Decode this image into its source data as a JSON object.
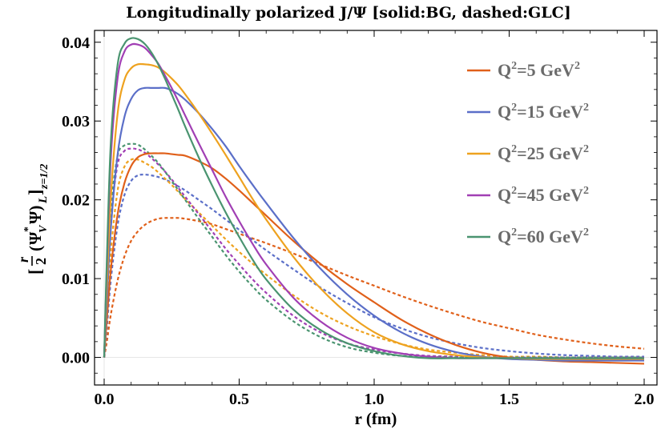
{
  "chart_data": {
    "type": "line",
    "title": "Longitudinally polarized J/Ψ [solid:BG, dashed:GLC]",
    "xlabel": "r (fm)",
    "ylabel": {
      "bracket_open": "[",
      "fraction_num": "r",
      "fraction_den": "2",
      "open_paren": "(",
      "psi_v": "Ψ",
      "star": "*",
      "sub_v": "V",
      "psi": "Ψ)",
      "sub_L": "L",
      "bracket_close": "]",
      "sub_z": "z=1/2"
    },
    "xlim": [
      0,
      2
    ],
    "ylim": [
      -0.0035,
      0.0415
    ],
    "xticks": [
      0.0,
      0.5,
      1.0,
      1.5,
      2.0
    ],
    "xtick_labels": [
      "0.0",
      "0.5",
      "1.0",
      "1.5",
      "2.0"
    ],
    "yticks": [
      0.0,
      0.01,
      0.02,
      0.03,
      0.04
    ],
    "ytick_labels": [
      "0.00",
      "0.01",
      "0.02",
      "0.03",
      "0.04"
    ],
    "grid": false,
    "legend_position": "top-right",
    "x": [
      0,
      0.01,
      0.025,
      0.05,
      0.075,
      0.1,
      0.125,
      0.15,
      0.175,
      0.2,
      0.225,
      0.25,
      0.275,
      0.3,
      0.35,
      0.4,
      0.45,
      0.5,
      0.55,
      0.6,
      0.7,
      0.8,
      0.9,
      1.0,
      1.1,
      1.2,
      1.3,
      1.4,
      1.5,
      1.6,
      1.7,
      1.8,
      1.9,
      2.0
    ],
    "series": [
      {
        "name": "Q²=5 GeV²",
        "legend": {
          "q": "Q",
          "q_sup": "2",
          "value": "=5 GeV",
          "unit_sup": "2"
        },
        "color": "#e0601a",
        "style": "solid",
        "values": [
          0,
          0.0048,
          0.0112,
          0.0182,
          0.0221,
          0.0243,
          0.0254,
          0.0258,
          0.0259,
          0.0259,
          0.0259,
          0.0258,
          0.0257,
          0.0256,
          0.0249,
          0.024,
          0.0227,
          0.0212,
          0.0196,
          0.018,
          0.0148,
          0.0119,
          0.0093,
          0.007,
          0.0048,
          0.003,
          0.0016,
          0.0006,
          0.0,
          -0.0003,
          -0.0005,
          -0.0006,
          -0.0007,
          -0.0008
        ]
      },
      {
        "name": "Q²=15 GeV²",
        "legend": {
          "q": "Q",
          "q_sup": "2",
          "value": "=15 GeV",
          "unit_sup": "2"
        },
        "color": "#5b6fc8",
        "style": "solid",
        "values": [
          0,
          0.0072,
          0.0165,
          0.0258,
          0.0305,
          0.0328,
          0.0339,
          0.0342,
          0.0342,
          0.0342,
          0.0342,
          0.0339,
          0.0334,
          0.0327,
          0.031,
          0.029,
          0.0268,
          0.0243,
          0.0219,
          0.0196,
          0.0152,
          0.0113,
          0.008,
          0.0053,
          0.0032,
          0.0017,
          0.0007,
          0.0001,
          -0.0002,
          -0.0003,
          -0.0004,
          -0.0004,
          -0.0004,
          -0.0004
        ]
      },
      {
        "name": "Q²=25 GeV²",
        "legend": {
          "q": "Q",
          "q_sup": "2",
          "value": "=25 GeV",
          "unit_sup": "2"
        },
        "color": "#eea21f",
        "style": "solid",
        "values": [
          0,
          0.009,
          0.0205,
          0.031,
          0.0352,
          0.0367,
          0.0372,
          0.0372,
          0.0371,
          0.0368,
          0.0362,
          0.0354,
          0.0345,
          0.0334,
          0.031,
          0.0284,
          0.0257,
          0.0229,
          0.0201,
          0.0175,
          0.0128,
          0.0088,
          0.0056,
          0.0032,
          0.0017,
          0.0008,
          0.0003,
          0.0,
          -0.0001,
          -0.0002,
          -0.0002,
          -0.0002,
          -0.0002,
          -0.0002
        ]
      },
      {
        "name": "Q²=45 GeV²",
        "legend": {
          "q": "Q",
          "q_sup": "2",
          "value": "=45 GeV",
          "unit_sup": "2"
        },
        "color": "#a13fb4",
        "style": "solid",
        "values": [
          0,
          0.0115,
          0.0255,
          0.0355,
          0.0388,
          0.0397,
          0.0397,
          0.0393,
          0.0384,
          0.0373,
          0.0358,
          0.0342,
          0.0325,
          0.0307,
          0.0272,
          0.0238,
          0.0204,
          0.0173,
          0.0144,
          0.0118,
          0.0076,
          0.0046,
          0.0025,
          0.0012,
          0.0005,
          0.0001,
          -0.0001,
          -0.0001,
          -0.0001,
          -0.0001,
          -0.0001,
          -0.0001,
          -0.0001,
          -0.0001
        ]
      },
      {
        "name": "Q²=60 GeV²",
        "legend": {
          "q": "Q",
          "q_sup": "2",
          "value": "=60 GeV",
          "unit_sup": "2"
        },
        "color": "#4a9470",
        "style": "solid",
        "values": [
          0,
          0.0125,
          0.0275,
          0.0372,
          0.0398,
          0.0405,
          0.0404,
          0.0398,
          0.0387,
          0.0372,
          0.0354,
          0.0334,
          0.0314,
          0.0293,
          0.0254,
          0.0218,
          0.0184,
          0.0153,
          0.0124,
          0.0099,
          0.0061,
          0.0035,
          0.0018,
          0.0008,
          0.0002,
          -0.0001,
          -0.0001,
          -0.0001,
          -0.0001,
          -0.0001,
          -0.0001,
          -0.0001,
          -0.0001,
          -0.0001
        ]
      },
      {
        "name": "Q²=5 GeV² (GLC)",
        "color": "#e0601a",
        "style": "dashed",
        "values": [
          0,
          0.002,
          0.0055,
          0.0098,
          0.0128,
          0.0148,
          0.016,
          0.0168,
          0.0173,
          0.0176,
          0.0177,
          0.0177,
          0.0177,
          0.0176,
          0.0173,
          0.0169,
          0.0163,
          0.0157,
          0.0151,
          0.0145,
          0.0132,
          0.0118,
          0.0104,
          0.0091,
          0.0078,
          0.0066,
          0.0055,
          0.0045,
          0.0037,
          0.0029,
          0.0023,
          0.0018,
          0.0014,
          0.0011
        ]
      },
      {
        "name": "Q²=15 GeV² (GLC)",
        "color": "#5b6fc8",
        "style": "dashed",
        "values": [
          0,
          0.0037,
          0.0099,
          0.0168,
          0.0206,
          0.0224,
          0.0231,
          0.0232,
          0.0231,
          0.0229,
          0.0226,
          0.0222,
          0.0217,
          0.0212,
          0.02,
          0.0188,
          0.0175,
          0.0162,
          0.0149,
          0.0136,
          0.0112,
          0.0089,
          0.0069,
          0.0051,
          0.0037,
          0.0026,
          0.0018,
          0.0012,
          0.0008,
          0.0005,
          0.0003,
          0.0002,
          0.0001,
          0.0001
        ]
      },
      {
        "name": "Q²=25 GeV² (GLC)",
        "color": "#eea21f",
        "style": "dashed",
        "values": [
          0,
          0.005,
          0.0135,
          0.0212,
          0.0242,
          0.0251,
          0.0251,
          0.0247,
          0.0242,
          0.0235,
          0.0227,
          0.0219,
          0.021,
          0.0201,
          0.0184,
          0.0167,
          0.015,
          0.0134,
          0.0119,
          0.0105,
          0.0079,
          0.0057,
          0.004,
          0.0027,
          0.0017,
          0.001,
          0.0006,
          0.0003,
          0.0001,
          0.0001,
          0.0,
          0.0,
          0.0,
          0.0
        ]
      },
      {
        "name": "Q²=45 GeV² (GLC)",
        "color": "#a13fb4",
        "style": "dashed",
        "values": [
          0,
          0.0072,
          0.0175,
          0.0245,
          0.0262,
          0.0265,
          0.0264,
          0.026,
          0.0253,
          0.0245,
          0.0236,
          0.0226,
          0.0215,
          0.0204,
          0.0182,
          0.016,
          0.0138,
          0.0118,
          0.0099,
          0.0082,
          0.0053,
          0.0032,
          0.0018,
          0.001,
          0.0005,
          0.0002,
          0.0001,
          0.0,
          0.0,
          0.0,
          0.0,
          0.0,
          0.0,
          0.0
        ]
      },
      {
        "name": "Q²=60 GeV² (GLC)",
        "color": "#4a9470",
        "style": "dashed",
        "values": [
          0,
          0.008,
          0.0188,
          0.0256,
          0.0269,
          0.0271,
          0.027,
          0.0264,
          0.0256,
          0.0247,
          0.0236,
          0.0224,
          0.0212,
          0.02,
          0.0176,
          0.0153,
          0.013,
          0.0109,
          0.009,
          0.0073,
          0.0046,
          0.0026,
          0.0013,
          0.0006,
          0.0002,
          0.0001,
          0.0,
          0.0,
          0.0,
          0.0,
          0.0,
          0.0,
          0.0,
          0.0
        ]
      }
    ]
  }
}
